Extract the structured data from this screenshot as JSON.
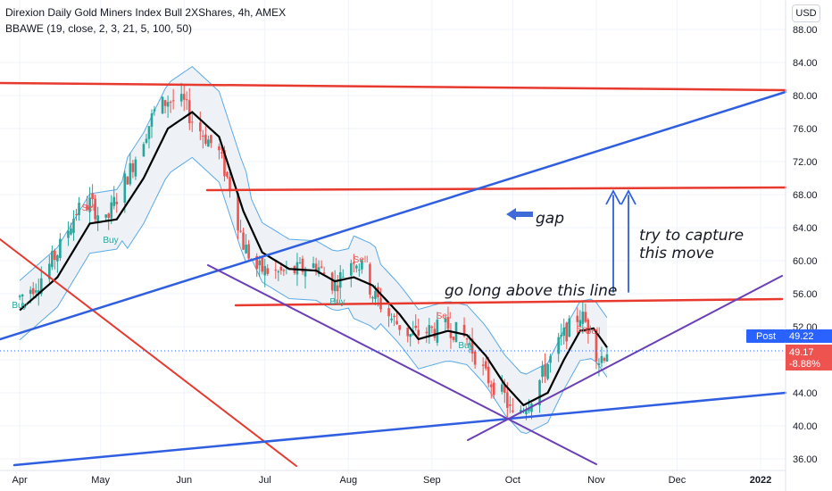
{
  "header": {
    "title": "Direxion Daily Gold Miners Index Bull 2XShares, 4h, AMEX",
    "indicator": "BBAWE (19, close, 2, 3, 21, 5, 100, 50)",
    "currency_button": "USD"
  },
  "price_tags": {
    "post_label": "Post",
    "post_value": "49.22",
    "last_value": "49.17",
    "change_pct": "-8.88%"
  },
  "annotations": {
    "gap": "gap",
    "capture_line1": "try to capture",
    "capture_line2": "this move",
    "go_long": "go long above this line"
  },
  "signals": [
    "Buy",
    "Sell",
    "Buy",
    "Sell",
    "Buy",
    "Sell",
    "Sell",
    "Buy",
    "Sell"
  ],
  "colors": {
    "red_line": "#e8392f",
    "blue_line": "#2f5fe0",
    "purple_line": "#6a3fb5",
    "ma_line": "#000000",
    "band_line": "#5aa9e6",
    "band_fill": "#eef2f6",
    "candle_up": "#26a69a",
    "candle_down": "#ef5350",
    "post_tag": "#2962ff",
    "price_tag": "#ef5350"
  },
  "chart_data": {
    "type": "candlestick",
    "title": "Direxion Daily Gold Miners Index Bull 2XShares, 4h, AMEX",
    "ylim": [
      35,
      90
    ],
    "yticks": [
      "88.00",
      "84.00",
      "80.00",
      "76.00",
      "72.00",
      "68.00",
      "64.00",
      "60.00",
      "56.00",
      "52.00",
      "48.00",
      "44.00",
      "40.00",
      "36.00"
    ],
    "xticks": [
      "Apr",
      "May",
      "Jun",
      "Jul",
      "Aug",
      "Sep",
      "Oct",
      "Nov",
      "Dec",
      "2022"
    ],
    "close_path": [
      [
        "2021-04-01",
        55.6
      ],
      [
        "2021-04-08",
        57.5
      ],
      [
        "2021-04-15",
        61.0
      ],
      [
        "2021-04-22",
        66.0
      ],
      [
        "2021-04-27",
        67.0
      ],
      [
        "2021-05-03",
        64.5
      ],
      [
        "2021-05-06",
        67.0
      ],
      [
        "2021-05-12",
        71.0
      ],
      [
        "2021-05-17",
        75.0
      ],
      [
        "2021-05-21",
        78.0
      ],
      [
        "2021-05-26",
        79.5
      ],
      [
        "2021-06-01",
        79.0
      ],
      [
        "2021-06-04",
        77.0
      ],
      [
        "2021-06-09",
        75.0
      ],
      [
        "2021-06-14",
        73.0
      ],
      [
        "2021-06-18",
        69.0
      ],
      [
        "2021-06-23",
        62.0
      ],
      [
        "2021-06-28",
        59.0
      ],
      [
        "2021-07-06",
        58.5
      ],
      [
        "2021-07-13",
        58.8
      ],
      [
        "2021-07-20",
        59.5
      ],
      [
        "2021-07-27",
        57.0
      ],
      [
        "2021-08-03",
        60.5
      ],
      [
        "2021-08-06",
        59.0
      ],
      [
        "2021-08-10",
        56.0
      ],
      [
        "2021-08-17",
        53.0
      ],
      [
        "2021-08-24",
        51.0
      ],
      [
        "2021-08-31",
        51.5
      ],
      [
        "2021-09-07",
        52.0
      ],
      [
        "2021-09-14",
        50.5
      ],
      [
        "2021-09-21",
        46.0
      ],
      [
        "2021-09-28",
        43.5
      ],
      [
        "2021-10-01",
        41.0
      ],
      [
        "2021-10-08",
        43.5
      ],
      [
        "2021-10-14",
        47.5
      ],
      [
        "2021-10-20",
        51.0
      ],
      [
        "2021-10-26",
        53.5
      ],
      [
        "2021-10-29",
        52.0
      ],
      [
        "2021-11-02",
        48.0
      ],
      [
        "2021-11-05",
        49.2
      ]
    ],
    "moving_average": [
      [
        "2021-04-01",
        54.0
      ],
      [
        "2021-04-15",
        58.0
      ],
      [
        "2021-04-27",
        64.5
      ],
      [
        "2021-05-07",
        65.0
      ],
      [
        "2021-05-17",
        70.0
      ],
      [
        "2021-05-26",
        76.0
      ],
      [
        "2021-06-04",
        78.0
      ],
      [
        "2021-06-14",
        75.0
      ],
      [
        "2021-06-23",
        66.0
      ],
      [
        "2021-06-30",
        61.0
      ],
      [
        "2021-07-10",
        59.0
      ],
      [
        "2021-07-20",
        58.8
      ],
      [
        "2021-07-27",
        57.5
      ],
      [
        "2021-08-03",
        58.0
      ],
      [
        "2021-08-10",
        57.0
      ],
      [
        "2021-08-20",
        53.5
      ],
      [
        "2021-08-27",
        50.5
      ],
      [
        "2021-09-07",
        51.5
      ],
      [
        "2021-09-14",
        51.0
      ],
      [
        "2021-09-21",
        48.5
      ],
      [
        "2021-09-28",
        45.0
      ],
      [
        "2021-10-05",
        42.5
      ],
      [
        "2021-10-14",
        44.0
      ],
      [
        "2021-10-20",
        48.0
      ],
      [
        "2021-10-26",
        51.5
      ],
      [
        "2021-10-31",
        51.8
      ],
      [
        "2021-11-05",
        49.5
      ]
    ],
    "price_tags": {
      "post": 49.22,
      "last": 49.17,
      "change_pct": -8.88
    }
  }
}
